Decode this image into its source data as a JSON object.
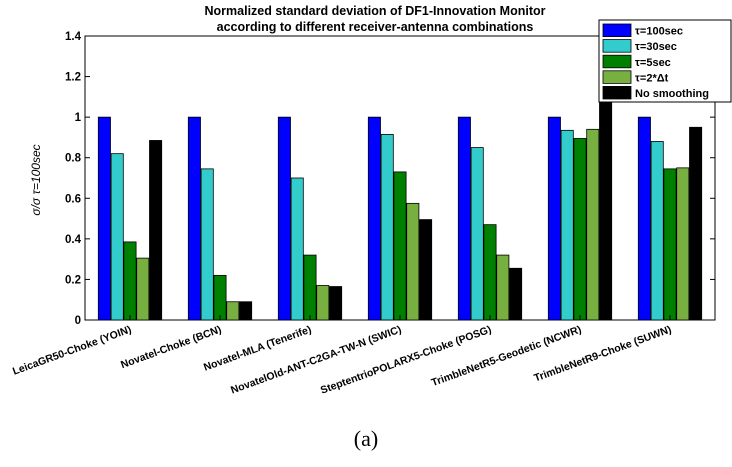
{
  "chart_data": {
    "type": "bar",
    "title": [
      "Normalized standard deviation of DF1-Innovation Monitor",
      "according to different receiver-antenna combinations"
    ],
    "ylabel": "σ/σ τ=100sec",
    "ylim": [
      0,
      1.4
    ],
    "yticks": [
      "0",
      "0.2",
      "0.4",
      "0.6",
      "0.8",
      "1",
      "1.2",
      "1.4"
    ],
    "ytick_values": [
      0,
      0.2,
      0.4,
      0.6,
      0.8,
      1.0,
      1.2,
      1.4
    ],
    "grid": false,
    "legend_position": "top-right",
    "categories": [
      "LeicaGR50-Choke (YOIN)",
      "Novatel-Choke (BCN)",
      "Novatel-MLA (Tenerife)",
      "NovatelOld-ANT-C2GA-TW-N (SWIC)",
      "SteptentrioPOLARX5-Choke (POSG)",
      "TrimbleNetR5-Geodetic (NCWR)",
      "TrimbleNetR9-Choke (SUWN)"
    ],
    "series": [
      {
        "name": "τ=100sec",
        "color": "#0000ff",
        "values": [
          1.0,
          1.0,
          1.0,
          1.0,
          1.0,
          1.0,
          1.0
        ]
      },
      {
        "name": "τ=30sec",
        "color": "#33cccc",
        "values": [
          0.82,
          0.745,
          0.7,
          0.915,
          0.85,
          0.935,
          0.88
        ]
      },
      {
        "name": "τ=5sec",
        "color": "#008000",
        "values": [
          0.385,
          0.22,
          0.32,
          0.73,
          0.47,
          0.895,
          0.745
        ]
      },
      {
        "name": "τ=2*Δt",
        "color": "#77b041",
        "values": [
          0.305,
          0.09,
          0.17,
          0.575,
          0.32,
          0.94,
          0.75
        ]
      },
      {
        "name": "No smoothing",
        "color": "#000000",
        "values": [
          0.885,
          0.09,
          0.165,
          0.495,
          0.255,
          1.095,
          0.95
        ]
      }
    ]
  },
  "caption": "(a)"
}
